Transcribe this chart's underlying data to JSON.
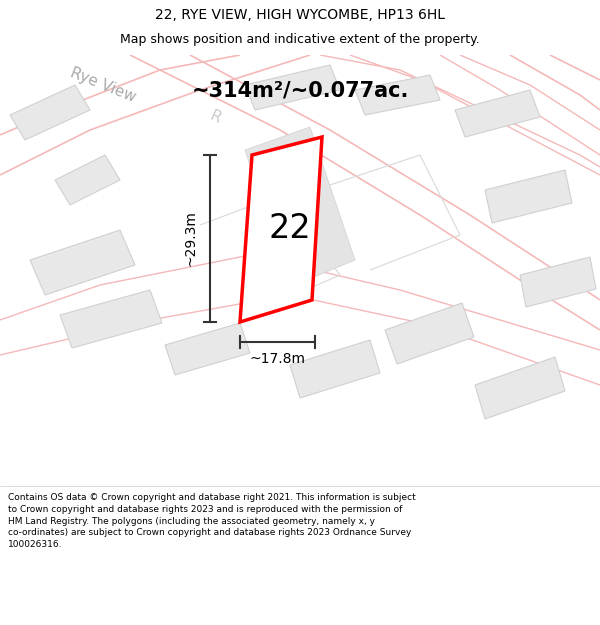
{
  "title": "22, RYE VIEW, HIGH WYCOMBE, HP13 6HL",
  "subtitle": "Map shows position and indicative extent of the property.",
  "area_label": "~314m²/~0.077ac.",
  "house_number": "22",
  "dim_width": "~17.8m",
  "dim_height": "~29.3m",
  "footer": "Contains OS data © Crown copyright and database right 2021. This information is subject to Crown copyright and database rights 2023 and is reproduced with the permission of HM Land Registry. The polygons (including the associated geometry, namely x, y co-ordinates) are subject to Crown copyright and database rights 2023 Ordnance Survey 100026316.",
  "bg_color": "#ffffff",
  "map_bg": "#f8f8f8",
  "building_fc": "#e8e8e8",
  "building_ec": "#d0d0d0",
  "plot_fc": "#ffffff",
  "plot_ec": "#ff0000",
  "pink_line": "#f5b8b8",
  "grey_line": "#d8d8d8",
  "dim_color": "#333333",
  "street_color": "#bbbbbb",
  "title_fs": 10,
  "subtitle_fs": 9,
  "area_fs": 15,
  "house_fs": 24,
  "dim_fs": 10,
  "footer_fs": 6.5
}
